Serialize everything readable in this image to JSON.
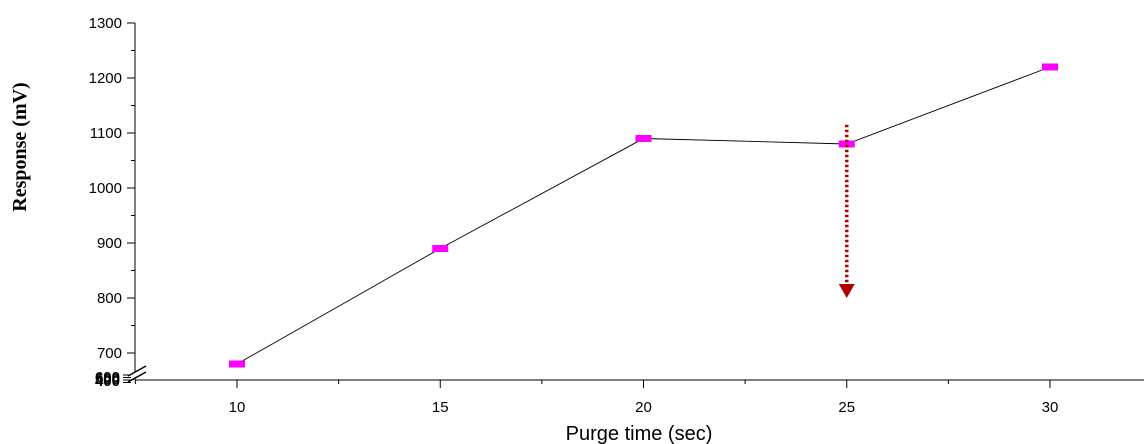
{
  "chart_data": {
    "type": "line",
    "xlabel": "Purge time (sec)",
    "ylabel": "Response (mV)",
    "x": [
      10,
      15,
      20,
      25,
      30
    ],
    "series": [
      {
        "values": [
          680,
          890,
          1090,
          1080,
          1220
        ]
      }
    ],
    "xlim": [
      7.5,
      32.2
    ],
    "ylim": [
      665,
      1300
    ],
    "xticks": [
      10,
      15,
      20,
      25,
      30
    ],
    "yticks": [
      700,
      800,
      900,
      1000,
      1100,
      1200,
      1300
    ],
    "axis_break_labels": [
      "400",
      "500",
      "600"
    ],
    "grid": false,
    "legend": "none",
    "marker": "rectangle",
    "line_color": "#000000",
    "marker_color": "#ff00ff",
    "annotation": {
      "type": "dotted-arrow-down",
      "x": 25,
      "y_start": 1115,
      "y_end": 800,
      "color": "#b20000"
    }
  }
}
